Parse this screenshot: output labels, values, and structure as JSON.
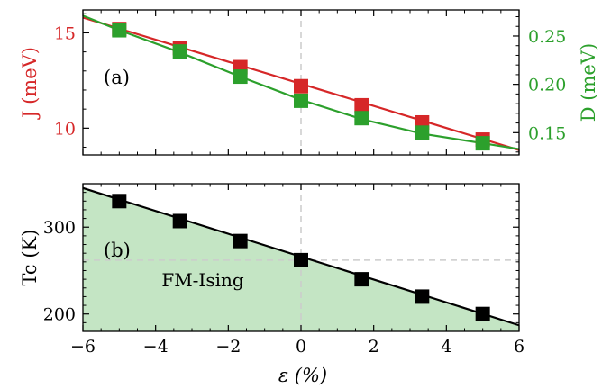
{
  "chart_data": [
    {
      "panel": "a",
      "type": "line",
      "panel_label": "(a)",
      "xlim": [
        -6,
        6
      ],
      "x_ticks": [
        -6,
        -4,
        -2,
        0,
        2,
        4,
        6
      ],
      "left_axis": {
        "label": "J (meV)",
        "ylim": [
          8.6,
          16.2
        ],
        "ticks": [
          10,
          15
        ],
        "color": "#d62728"
      },
      "right_axis": {
        "label": "D (meV)",
        "ylim": [
          0.127,
          0.277
        ],
        "ticks": [
          0.15,
          0.2,
          0.25
        ],
        "color": "#2ca02c"
      },
      "series": [
        {
          "name": "J",
          "axis": "left",
          "color": "#d62728",
          "x": [
            -5,
            -3.33,
            -1.67,
            0,
            1.67,
            3.33,
            5
          ],
          "y": [
            15.2,
            14.2,
            13.2,
            12.2,
            11.2,
            10.3,
            9.4
          ],
          "fit": [
            [
              -6,
              15.8
            ],
            [
              6,
              8.85
            ]
          ]
        },
        {
          "name": "D",
          "axis": "right",
          "color": "#2ca02c",
          "x": [
            -5,
            -3.33,
            -1.67,
            0,
            1.67,
            3.33,
            5
          ],
          "y": [
            0.256,
            0.234,
            0.208,
            0.183,
            0.165,
            0.15,
            0.139
          ],
          "fit": [
            [
              -6,
              0.271
            ],
            [
              -5,
              0.256
            ],
            [
              -3.33,
              0.233
            ],
            [
              -1.67,
              0.208
            ],
            [
              0,
              0.184
            ],
            [
              1.67,
              0.164
            ],
            [
              3.33,
              0.149
            ],
            [
              5,
              0.139
            ],
            [
              6,
              0.133
            ]
          ]
        }
      ],
      "zero_line": true
    },
    {
      "panel": "b",
      "type": "area",
      "panel_label": "(b)",
      "region_label": "FM-Ising",
      "xlabel": "ε (%)",
      "ylabel": "Tc (K)",
      "xlim": [
        -6,
        6
      ],
      "ylim": [
        180,
        350
      ],
      "x_ticks": [
        -6,
        -4,
        -2,
        0,
        2,
        4,
        6
      ],
      "x_tick_labels": [
        "−6",
        "−4",
        "−2",
        "0",
        "2",
        "4",
        "6"
      ],
      "y_ticks": [
        200,
        300
      ],
      "fill_color": "#c4e5c4",
      "series": [
        {
          "name": "Tc",
          "color": "#000000",
          "x": [
            -5,
            -3.33,
            -1.67,
            0,
            1.67,
            3.33,
            5
          ],
          "y": [
            330,
            307,
            284,
            262,
            240,
            220,
            200
          ],
          "fit": [
            [
              -6,
              345
            ],
            [
              6,
              187
            ]
          ]
        }
      ],
      "reference_lines": {
        "x": 0,
        "y": 262
      }
    }
  ]
}
